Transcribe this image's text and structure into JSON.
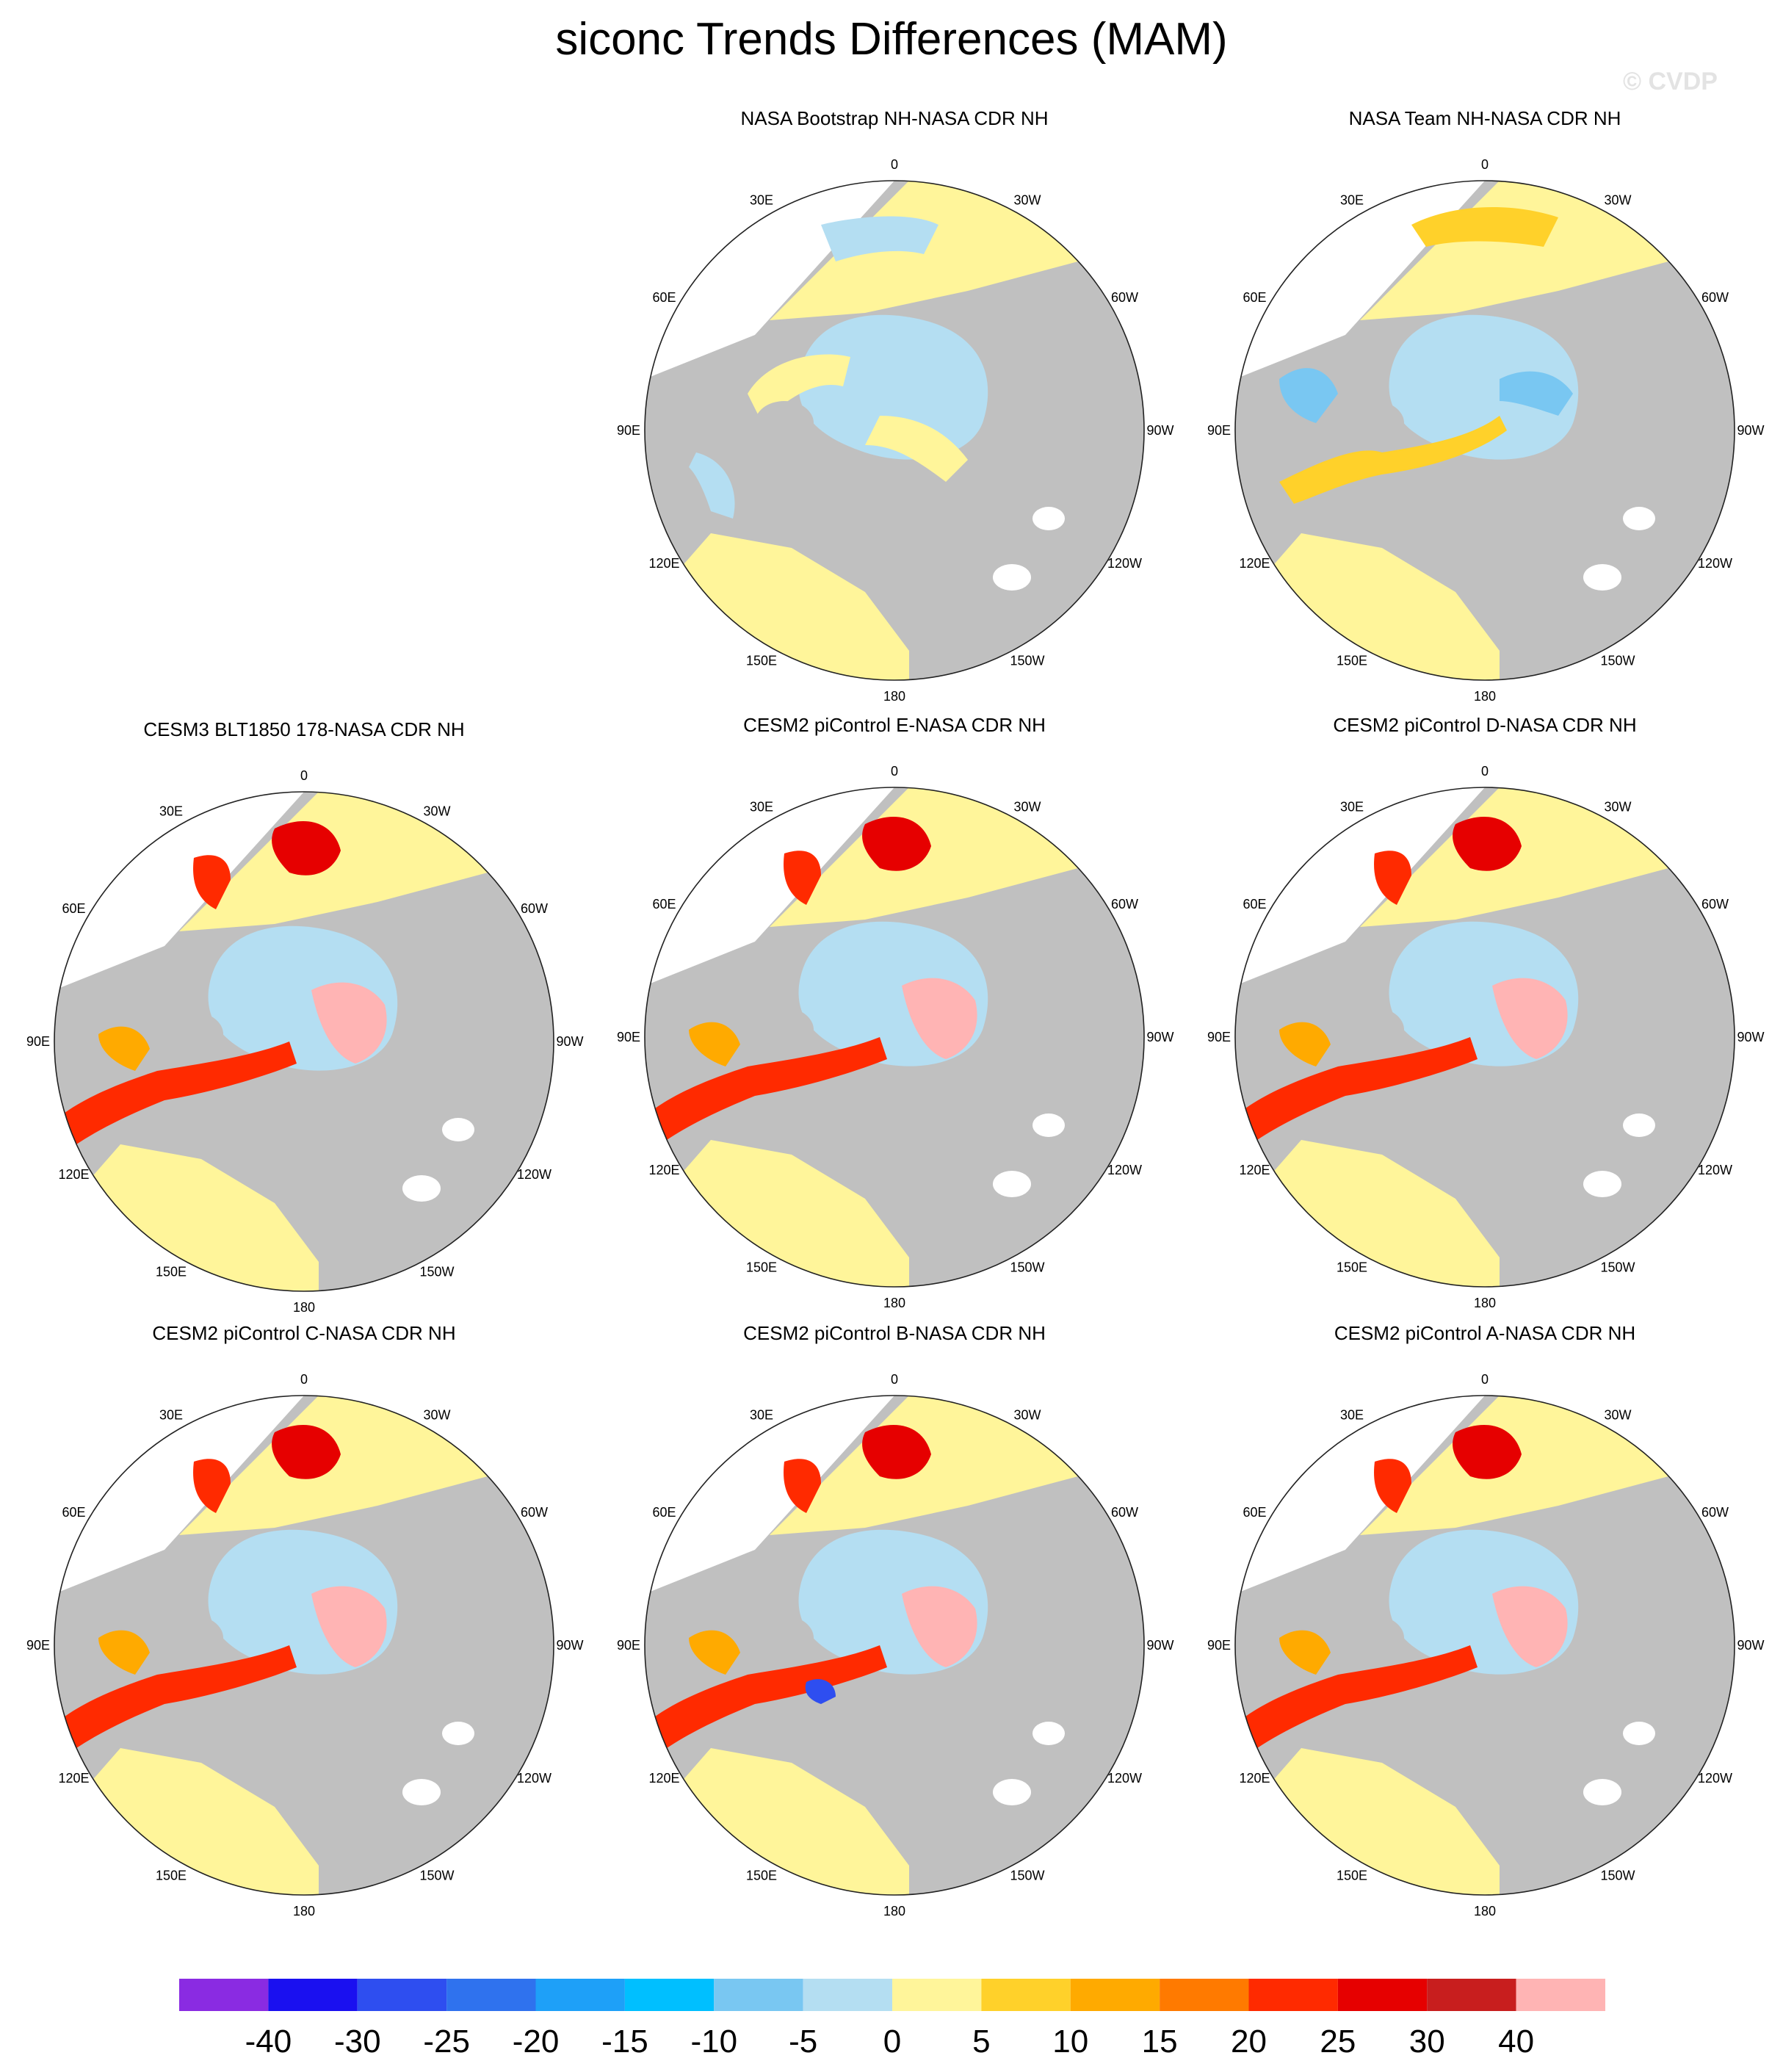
{
  "figure": {
    "title": "siconc Trends Differences (MAM)",
    "watermark": "© CVDP"
  },
  "longitude_labels": [
    "180",
    "150E",
    "120E",
    "90E",
    "60E",
    "30E",
    "0",
    "30W",
    "60W",
    "90W",
    "120W",
    "150W"
  ],
  "panels": [
    {
      "id": "bootstrap",
      "title": "NASA Bootstrap NH-NASA CDR NH",
      "pattern": "obs-bootstrap"
    },
    {
      "id": "team",
      "title": "NASA Team NH-NASA CDR NH",
      "pattern": "obs-team"
    },
    {
      "id": "cesm3",
      "title": "CESM3 BLT1850 178-NASA CDR NH",
      "pattern": "model"
    },
    {
      "id": "cesm2e",
      "title": "CESM2 piControl E-NASA CDR NH",
      "pattern": "model"
    },
    {
      "id": "cesm2d",
      "title": "CESM2 piControl D-NASA CDR NH",
      "pattern": "model"
    },
    {
      "id": "cesm2c",
      "title": "CESM2 piControl C-NASA CDR NH",
      "pattern": "model"
    },
    {
      "id": "cesm2b",
      "title": "CESM2 piControl B-NASA CDR NH",
      "pattern": "model-b"
    },
    {
      "id": "cesm2a",
      "title": "CESM2 piControl A-NASA CDR NH",
      "pattern": "model"
    }
  ],
  "colorbar": {
    "labels": [
      "-40",
      "-30",
      "-25",
      "-20",
      "-15",
      "-10",
      "-5",
      "0",
      "5",
      "10",
      "15",
      "20",
      "25",
      "30",
      "40"
    ],
    "colors": [
      "#8a2be2",
      "#1a10f0",
      "#2e4ef0",
      "#2f72ee",
      "#1ea0f8",
      "#00bfff",
      "#79c7f2",
      "#b4def2",
      "#fff59a",
      "#ffd12a",
      "#ffaa00",
      "#ff7a00",
      "#ff2a00",
      "#e60000",
      "#c81e1e",
      "#ffb4b4"
    ]
  },
  "map_colors": {
    "land": "#c0c0c0",
    "background": "#ffffff",
    "pos_small": "#fff59a",
    "neg_small": "#b4def2"
  }
}
